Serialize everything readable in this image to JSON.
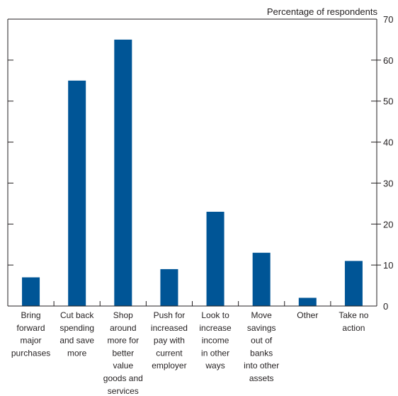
{
  "chart_data": {
    "type": "bar",
    "unit_label": "Percentage of respondents",
    "categories": [
      [
        "Bring",
        "forward",
        "major",
        "purchases"
      ],
      [
        "Cut back",
        "spending",
        "and save",
        "more"
      ],
      [
        "Shop",
        "around",
        "more for",
        "better",
        "value",
        "goods and",
        "services"
      ],
      [
        "Push for",
        "increased",
        "pay with",
        "current",
        "employer"
      ],
      [
        "Look to",
        "increase",
        "income",
        "in other",
        "ways"
      ],
      [
        "Move",
        "savings",
        "out of",
        "banks",
        "into other",
        "assets"
      ],
      [
        "Other"
      ],
      [
        "Take no",
        "action"
      ]
    ],
    "values": [
      7,
      55,
      65,
      9,
      23,
      13,
      2,
      11
    ],
    "ylim": [
      0,
      70
    ],
    "yticks": [
      0,
      10,
      20,
      30,
      40,
      50,
      60,
      70
    ],
    "y_axis_side": "right",
    "grid": false,
    "bar_color": "#005596"
  }
}
